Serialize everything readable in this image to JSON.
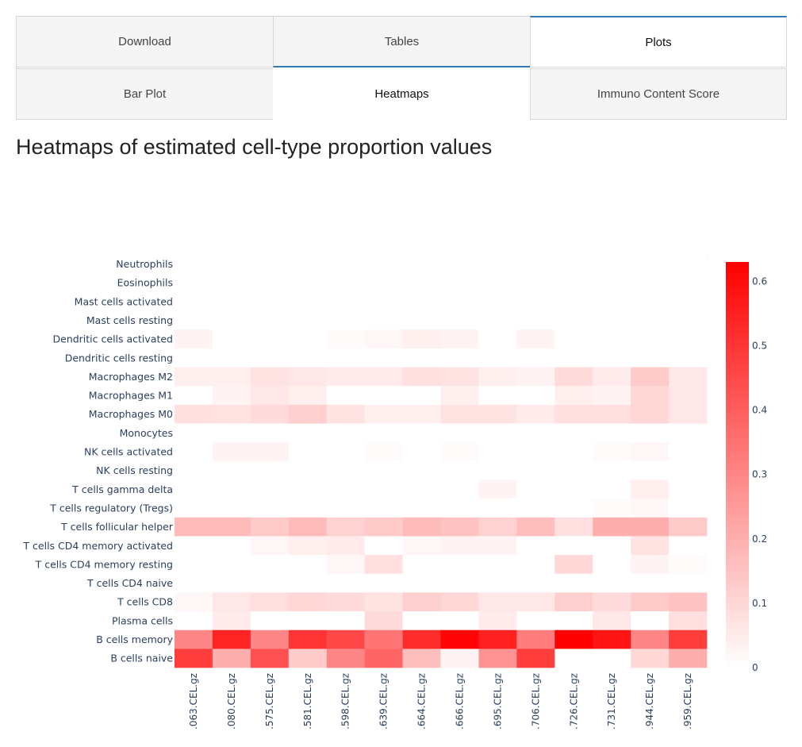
{
  "tabs_row1": [
    {
      "label": "Download",
      "active": false
    },
    {
      "label": "Tables",
      "active": false
    },
    {
      "label": "Plots",
      "active": true
    }
  ],
  "tabs_row2": [
    {
      "label": "Bar Plot",
      "active": false
    },
    {
      "label": "Heatmaps",
      "active": true
    },
    {
      "label": "Immuno Content Score",
      "active": false
    }
  ],
  "page_title": "Heatmaps of estimated cell-type proportion values",
  "colors": {
    "low": "#ffffff",
    "high": "#ff0000",
    "accent": "#337ab7"
  },
  "chart_data": {
    "type": "heatmap",
    "title": "",
    "rows": [
      "Neutrophils",
      "Eosinophils",
      "Mast cells activated",
      "Mast cells resting",
      "Dendritic cells activated",
      "Dendritic cells resting",
      "Macrophages M2",
      "Macrophages M1",
      "Macrophages M0",
      "Monocytes",
      "NK cells activated",
      "NK cells resting",
      "T cells gamma delta",
      "T cells regulatory (Tregs)",
      "T cells follicular helper",
      "T cells CD4 memory activated",
      "T cells CD4 memory resting",
      "T cells CD4 naive",
      "T cells CD8",
      "Plasma cells",
      "B cells memory",
      "B cells naive"
    ],
    "columns": [
      ".063.CEL.gz",
      ".080.CEL.gz",
      ".575.CEL.gz",
      ".581.CEL.gz",
      ".598.CEL.gz",
      ".639.CEL.gz",
      ".664.CEL.gz",
      ".666.CEL.gz",
      ".695.CEL.gz",
      ".706.CEL.gz",
      ".726.CEL.gz",
      ".731.CEL.gz",
      ".944.CEL.gz",
      ".959.CEL.gz"
    ],
    "values": [
      [
        0,
        0,
        0,
        0,
        0,
        0,
        0,
        0,
        0,
        0,
        0,
        0,
        0,
        0
      ],
      [
        0,
        0,
        0,
        0,
        0,
        0,
        0,
        0,
        0,
        0,
        0,
        0,
        0,
        0
      ],
      [
        0,
        0,
        0,
        0,
        0,
        0,
        0,
        0,
        0,
        0,
        0,
        0,
        0,
        0
      ],
      [
        0,
        0,
        0,
        0,
        0,
        0,
        0,
        0,
        0,
        0,
        0,
        0,
        0,
        0
      ],
      [
        0.03,
        0,
        0,
        0,
        0.01,
        0.02,
        0.04,
        0.03,
        0,
        0.03,
        0,
        0,
        0,
        0
      ],
      [
        0,
        0,
        0,
        0,
        0,
        0,
        0,
        0,
        0,
        0,
        0,
        0,
        0,
        0
      ],
      [
        0.04,
        0.04,
        0.07,
        0.06,
        0.05,
        0.05,
        0.08,
        0.07,
        0.04,
        0.03,
        0.09,
        0.05,
        0.13,
        0.06
      ],
      [
        0,
        0.03,
        0.06,
        0.04,
        0,
        0,
        0,
        0.04,
        0,
        0,
        0.04,
        0.03,
        0.1,
        0.06
      ],
      [
        0.08,
        0.07,
        0.09,
        0.12,
        0.07,
        0.04,
        0.04,
        0.07,
        0.07,
        0.05,
        0.08,
        0.08,
        0.1,
        0.06
      ],
      [
        0,
        0,
        0,
        0,
        0,
        0,
        0,
        0,
        0,
        0,
        0,
        0,
        0,
        0
      ],
      [
        0,
        0.03,
        0.03,
        0,
        0,
        0.01,
        0,
        0.01,
        0,
        0,
        0,
        0.01,
        0.02,
        0
      ],
      [
        0,
        0,
        0,
        0,
        0,
        0,
        0,
        0,
        0,
        0,
        0,
        0,
        0,
        0
      ],
      [
        0,
        0,
        0,
        0,
        0,
        0,
        0,
        0,
        0.03,
        0,
        0,
        0,
        0.04,
        0
      ],
      [
        0,
        0,
        0,
        0,
        0,
        0,
        0,
        0,
        0,
        0,
        0,
        0.01,
        0.02,
        0
      ],
      [
        0.17,
        0.17,
        0.13,
        0.17,
        0.11,
        0.13,
        0.17,
        0.15,
        0.11,
        0.16,
        0.08,
        0.2,
        0.2,
        0.13
      ],
      [
        0,
        0,
        0.02,
        0.04,
        0.05,
        0,
        0.02,
        0.03,
        0.03,
        0,
        0,
        0,
        0.07,
        0
      ],
      [
        0,
        0,
        0,
        0,
        0.02,
        0.08,
        0,
        0,
        0,
        0,
        0.1,
        0,
        0.03,
        0.01
      ],
      [
        0,
        0,
        0,
        0,
        0,
        0,
        0,
        0,
        0,
        0,
        0,
        0,
        0,
        0
      ],
      [
        0.02,
        0.06,
        0.08,
        0.1,
        0.09,
        0.07,
        0.12,
        0.1,
        0.06,
        0.06,
        0.12,
        0.09,
        0.13,
        0.15
      ],
      [
        0,
        0.05,
        0,
        0,
        0,
        0.09,
        0,
        0,
        0.05,
        0,
        0,
        0.06,
        0,
        0.08
      ],
      [
        0.3,
        0.54,
        0.3,
        0.5,
        0.45,
        0.34,
        0.52,
        0.62,
        0.55,
        0.32,
        0.63,
        0.58,
        0.3,
        0.48
      ],
      [
        0.48,
        0.2,
        0.43,
        0.13,
        0.3,
        0.38,
        0.16,
        0.03,
        0.27,
        0.48,
        0,
        0,
        0.1,
        0.2
      ]
    ],
    "zrange": [
      0,
      0.63
    ],
    "colorbar_ticks": [
      "0",
      "0.1",
      "0.2",
      "0.3",
      "0.4",
      "0.5",
      "0.6"
    ],
    "colorbar_tick_values": [
      0,
      0.1,
      0.2,
      0.3,
      0.4,
      0.5,
      0.6
    ]
  }
}
